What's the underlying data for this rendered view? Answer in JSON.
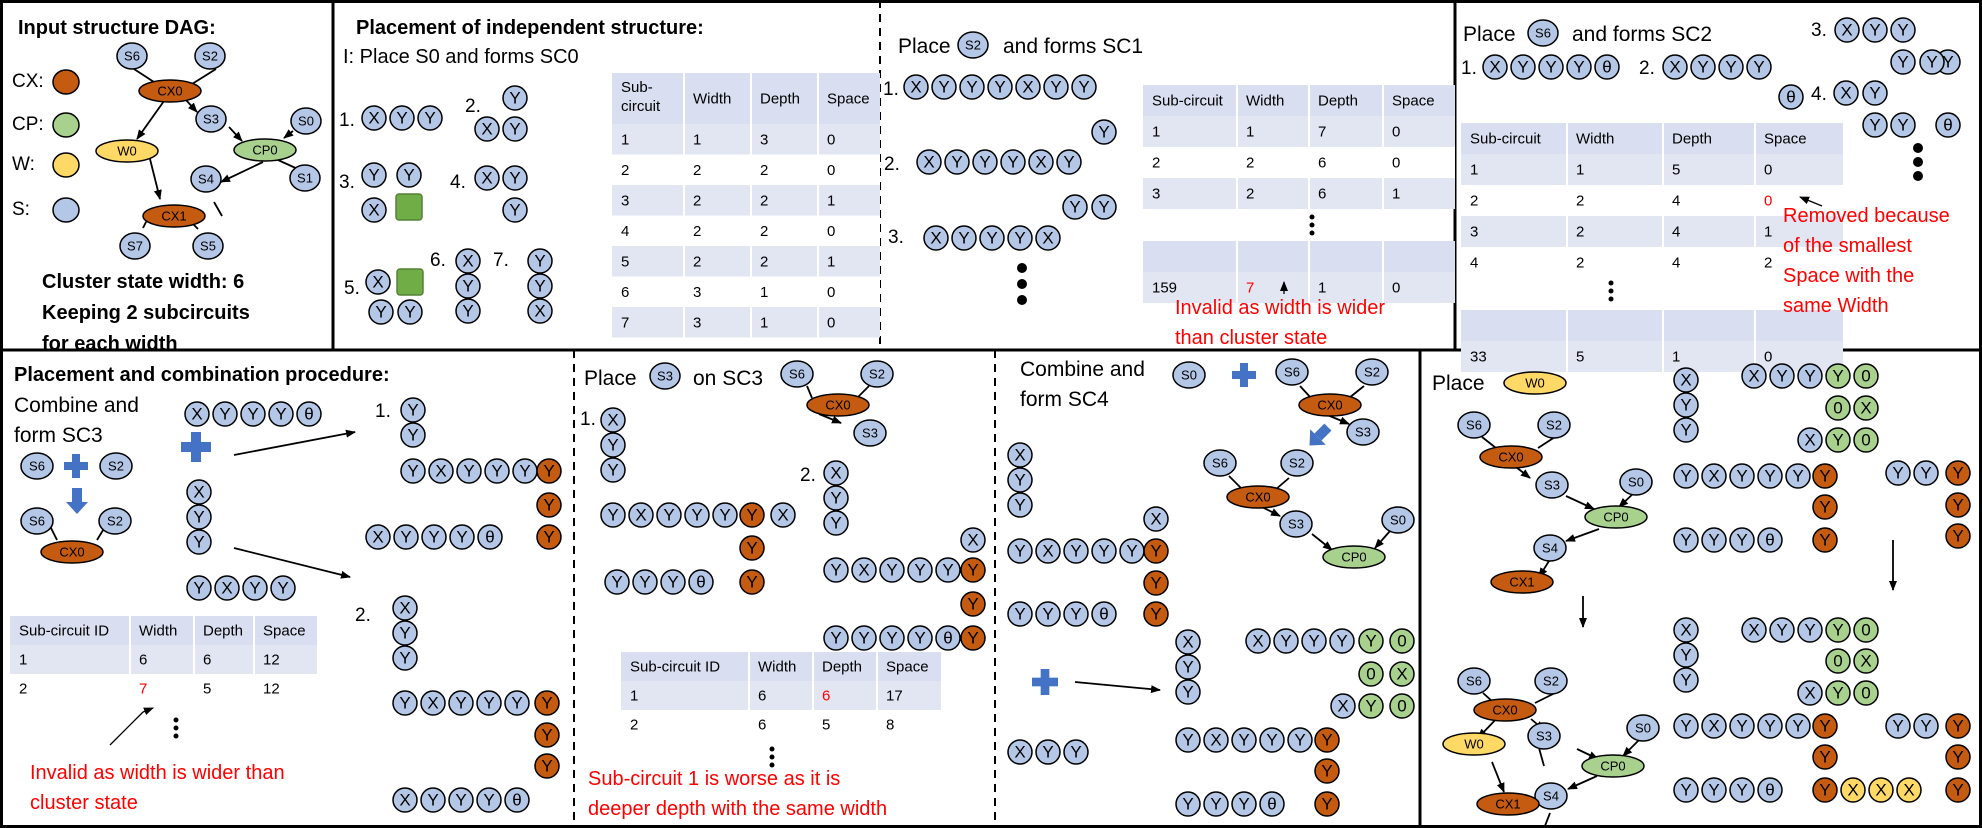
{
  "colors": {
    "cx": "#c55a11",
    "cp": "#a9d18e",
    "w": "#ffd966",
    "s": "#b4c7e7",
    "green_square": "#70ad47",
    "red": "#ff0000",
    "plus": "#4472c4",
    "table_head": "#d9dff0",
    "table_band": "#e2e6f3",
    "border": "#000000"
  },
  "glyphs": {
    "theta": "θ",
    "plus": "✚",
    "arrow_down": "⬇"
  },
  "legend": {
    "title": "Input structure DAG:",
    "cx": "CX:",
    "cp": "CP:",
    "w": "W:",
    "s": "S:",
    "note": [
      "Cluster state width: 6",
      "Keeping 2 subcircuits",
      "for each width"
    ]
  },
  "dag": {
    "s6": "S6",
    "s2": "S2",
    "cx0": "CX0",
    "s3": "S3",
    "s0": "S0",
    "w0": "W0",
    "cp0": "CP0",
    "s4": "S4",
    "s1": "S1",
    "cx1": "CX1",
    "s7": "S7",
    "s5": "S5"
  },
  "sc0": {
    "title": "Placement of independent structure:",
    "subtitle": "I: Place S0 and forms SC0",
    "numbers": [
      "1.",
      "2.",
      "3.",
      "4.",
      "5.",
      "6.",
      "7."
    ],
    "table": {
      "headers": [
        "Sub-\ncircuit",
        "Width",
        "Depth",
        "Space"
      ],
      "rows": [
        [
          "1",
          "1",
          "3",
          "0"
        ],
        [
          "2",
          "2",
          "2",
          "0"
        ],
        [
          "3",
          "2",
          "2",
          "1"
        ],
        [
          "4",
          "2",
          "2",
          "0"
        ],
        [
          "5",
          "2",
          "2",
          "1"
        ],
        [
          "6",
          "3",
          "1",
          "0"
        ],
        [
          "7",
          "3",
          "1",
          "0"
        ]
      ]
    }
  },
  "sc1": {
    "title_pre": "Place",
    "node": "S2",
    "title_post": "and forms SC1",
    "numbers": [
      "1.",
      "2.",
      "3."
    ],
    "table": {
      "headers": [
        "Sub-circuit",
        "Width",
        "Depth",
        "Space"
      ],
      "rows": [
        [
          "1",
          "1",
          "7",
          "0"
        ],
        [
          "2",
          "2",
          "6",
          "0"
        ],
        [
          "3",
          "2",
          "6",
          "1"
        ],
        [
          "159",
          "7",
          "1",
          "0"
        ]
      ]
    },
    "note": [
      "Invalid as width is wider",
      "than cluster state"
    ]
  },
  "sc2": {
    "title_pre": "Place",
    "node": "S6",
    "title_post": "and forms SC2",
    "numbers": [
      "1.",
      "2.",
      "3.",
      "4."
    ],
    "table": {
      "headers": [
        "Sub-circuit",
        "Width",
        "Depth",
        "Space"
      ],
      "rows": [
        [
          "1",
          "1",
          "5",
          "0"
        ],
        [
          "2",
          "2",
          "4",
          "0"
        ],
        [
          "3",
          "2",
          "4",
          "1"
        ],
        [
          "4",
          "2",
          "4",
          "2"
        ],
        [
          "33",
          "5",
          "1",
          "0"
        ]
      ]
    },
    "note": [
      "Removed because",
      "of the smallest",
      "Space with the",
      "same Width"
    ]
  },
  "sc3": {
    "title": "Placement and combination procedure:",
    "combine": [
      "Combine and",
      "form SC3"
    ],
    "s6": "S6",
    "s2": "S2",
    "cx0": "CX0",
    "numbers": [
      "1.",
      "2."
    ],
    "table": {
      "headers": [
        "Sub-circuit ID",
        "Width",
        "Depth",
        "Space"
      ],
      "rows": [
        [
          "1",
          "6",
          "6",
          "12"
        ],
        [
          "2",
          "7",
          "5",
          "12"
        ]
      ]
    },
    "note": [
      "Invalid as width is wider than",
      "cluster state"
    ]
  },
  "s3place": {
    "title_pre": "Place",
    "node": "S3",
    "title_post": "on SC3",
    "s6": "S6",
    "s2": "S2",
    "cx0": "CX0",
    "s3": "S3",
    "numbers": [
      "1.",
      "2."
    ],
    "table": {
      "headers": [
        "Sub-circuit ID",
        "Width",
        "Depth",
        "Space"
      ],
      "rows": [
        [
          "1",
          "6",
          "6",
          "17"
        ],
        [
          "2",
          "6",
          "5",
          "8"
        ]
      ]
    },
    "note": [
      "Sub-circuit 1 is worse as it is",
      "deeper depth with the same width"
    ]
  },
  "sc4": {
    "combine": [
      "Combine and",
      "form SC4"
    ],
    "s0": "S0",
    "s6": "S6",
    "s2": "S2",
    "cx0": "CX0",
    "s3": "S3",
    "cp0": "CP0"
  },
  "w0place": {
    "title": "Place",
    "w0": "W0",
    "s6": "S6",
    "s2": "S2",
    "cx0": "CX0",
    "s3": "S3",
    "s0": "S0",
    "cp0": "CP0",
    "s4": "S4",
    "cx1": "CX1"
  }
}
